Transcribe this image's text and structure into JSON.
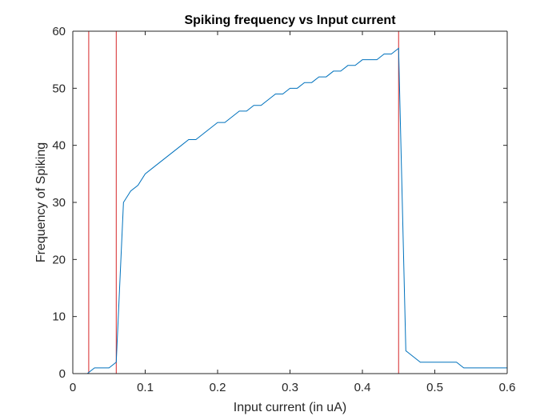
{
  "chart_data": {
    "type": "line",
    "title": "Spiking frequency vs Input current",
    "xlabel": "Input current (in uA)",
    "ylabel": "Frequency of Spiking",
    "xlim": [
      0,
      0.6
    ],
    "ylim": [
      0,
      60
    ],
    "xticks": [
      "0",
      "0.1",
      "0.2",
      "0.3",
      "0.4",
      "0.5",
      "0.6"
    ],
    "yticks": [
      "0",
      "10",
      "20",
      "30",
      "40",
      "50",
      "60"
    ],
    "grid": false,
    "series": [
      {
        "color": "#0072bd",
        "x": [
          0,
          0.01,
          0.02,
          0.03,
          0.04,
          0.05,
          0.06,
          0.07,
          0.08,
          0.09,
          0.1,
          0.11,
          0.12,
          0.13,
          0.14,
          0.15,
          0.16,
          0.17,
          0.18,
          0.19,
          0.2,
          0.21,
          0.22,
          0.23,
          0.24,
          0.25,
          0.26,
          0.27,
          0.28,
          0.29,
          0.3,
          0.31,
          0.32,
          0.33,
          0.34,
          0.35,
          0.36,
          0.37,
          0.38,
          0.39,
          0.4,
          0.41,
          0.42,
          0.43,
          0.44,
          0.45,
          0.46,
          0.47,
          0.48,
          0.49,
          0.5,
          0.51,
          0.52,
          0.53,
          0.54,
          0.55,
          0.56,
          0.57,
          0.58,
          0.59,
          0.6
        ],
        "y": [
          0,
          0,
          0,
          1,
          1,
          1,
          2,
          30,
          32,
          33,
          35,
          36,
          37,
          38,
          39,
          40,
          41,
          41,
          42,
          43,
          44,
          44,
          45,
          46,
          46,
          47,
          47,
          48,
          49,
          49,
          50,
          50,
          51,
          51,
          52,
          52,
          53,
          53,
          54,
          54,
          55,
          55,
          55,
          56,
          56,
          57,
          4,
          3,
          2,
          2,
          2,
          2,
          2,
          2,
          1,
          1,
          1,
          1,
          1,
          1,
          1
        ]
      }
    ],
    "vertical_lines": {
      "color": "#d62728",
      "x": [
        0.022,
        0.06,
        0.45
      ]
    }
  }
}
